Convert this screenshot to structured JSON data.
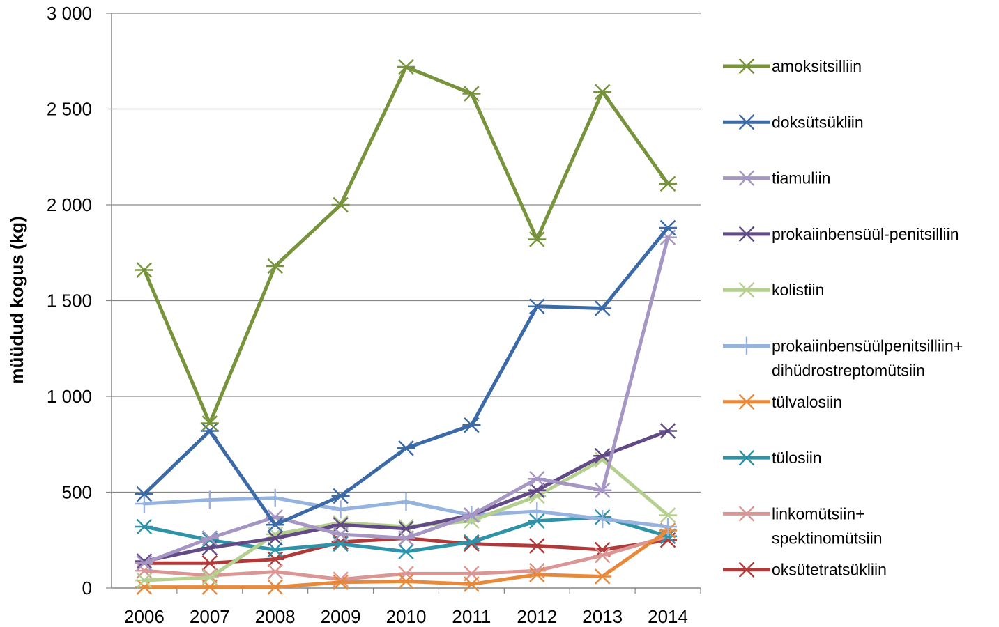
{
  "chart_data": {
    "type": "line",
    "title": "",
    "xlabel": "",
    "ylabel": "müüdud kogus (kg)",
    "ylim": [
      0,
      3000
    ],
    "ytick_values": [
      0,
      500,
      1000,
      1500,
      2000,
      2500,
      3000
    ],
    "ytick_labels": [
      "0",
      "500",
      "1 000",
      "1 500",
      "2 000",
      "2 500",
      "3 000"
    ],
    "categories": [
      "2006",
      "2007",
      "2008",
      "2009",
      "2010",
      "2011",
      "2012",
      "2013",
      "2014"
    ],
    "grid": true,
    "legend_position": "right",
    "series": [
      {
        "name": "amoksitsilliin",
        "color": "#77933C",
        "marker": "asterisk",
        "values": [
          1660,
          860,
          1680,
          2000,
          2720,
          2580,
          1820,
          2590,
          2110
        ]
      },
      {
        "name": "doksütsükliin",
        "color": "#3B6AA6",
        "marker": "asterisk",
        "values": [
          490,
          820,
          330,
          480,
          730,
          850,
          1470,
          1460,
          1880
        ]
      },
      {
        "name": "tiamuliin",
        "color": "#A596C4",
        "marker": "asterisk",
        "values": [
          130,
          260,
          370,
          280,
          260,
          380,
          570,
          510,
          1830
        ]
      },
      {
        "name": "prokaiinbensüül-penitsilliin",
        "color": "#614A85",
        "marker": "asterisk",
        "values": [
          140,
          210,
          260,
          330,
          310,
          380,
          510,
          690,
          820
        ]
      },
      {
        "name": "kolistiin",
        "color": "#B5CF8F",
        "marker": "asterisk",
        "values": [
          40,
          55,
          280,
          340,
          320,
          350,
          480,
          670,
          380
        ]
      },
      {
        "name": "prokaiinbensüülpenitsilliin+ dihüdrostreptomütsiin",
        "legend_lines": [
          "prokaiinbensüülpenitsilliin+",
          "dihüdrostreptomütsiin"
        ],
        "color": "#95B3DE",
        "marker": "plus",
        "values": [
          440,
          460,
          470,
          410,
          450,
          380,
          400,
          360,
          320
        ]
      },
      {
        "name": "tülvalosiin",
        "color": "#E8883A",
        "marker": "asterisk",
        "values": [
          5,
          5,
          5,
          30,
          35,
          20,
          70,
          60,
          300
        ]
      },
      {
        "name": "tülosiin",
        "color": "#2E93A8",
        "marker": "asterisk",
        "values": [
          320,
          250,
          200,
          230,
          190,
          240,
          350,
          370,
          270
        ]
      },
      {
        "name": "linkomütsiin+ spektinomütsiin",
        "legend_lines": [
          "linkomütsiin+",
          "spektinomütsiin"
        ],
        "color": "#D99694",
        "marker": "asterisk",
        "values": [
          90,
          65,
          85,
          45,
          75,
          75,
          90,
          170,
          270
        ]
      },
      {
        "name": "oksütetratsükliin",
        "color": "#B03A3A",
        "marker": "asterisk",
        "values": [
          130,
          130,
          150,
          240,
          260,
          230,
          220,
          200,
          250
        ]
      }
    ]
  }
}
